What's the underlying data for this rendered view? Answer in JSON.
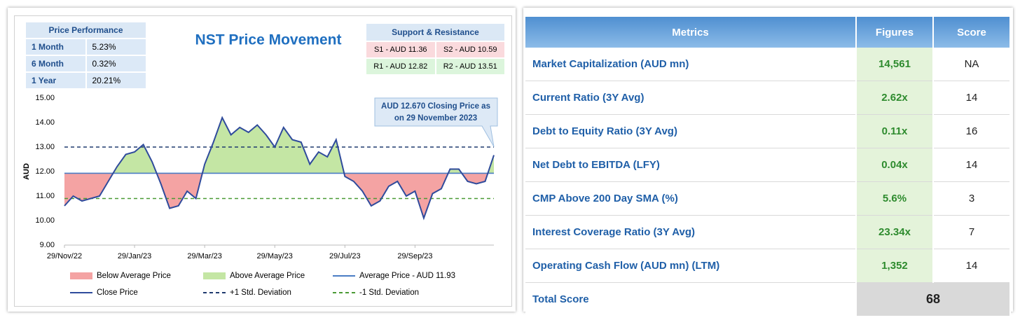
{
  "chart_data": {
    "type": "line",
    "title": "NST Price Movement",
    "ylabel": "AUD",
    "categories": [
      "29/Nov/22",
      null,
      null,
      null,
      null,
      null,
      null,
      null,
      "29/Jan/23",
      null,
      null,
      null,
      null,
      null,
      null,
      null,
      "29/Mar/23",
      null,
      null,
      null,
      null,
      null,
      null,
      null,
      "29/May/23",
      null,
      null,
      null,
      null,
      null,
      null,
      null,
      "29/Jul/23",
      null,
      null,
      null,
      null,
      null,
      null,
      null,
      "29/Sep/23",
      null,
      null,
      null,
      null,
      null,
      null,
      null,
      null,
      null
    ],
    "series": [
      {
        "name": "Close Price",
        "color": "#2f4b9c",
        "values": [
          10.6,
          11.0,
          10.8,
          10.9,
          11.0,
          11.6,
          12.2,
          12.7,
          12.8,
          13.1,
          12.4,
          11.5,
          10.5,
          10.6,
          11.2,
          10.9,
          12.3,
          13.2,
          14.2,
          13.5,
          13.8,
          13.6,
          13.9,
          13.5,
          13.0,
          13.8,
          13.3,
          13.2,
          12.3,
          12.8,
          12.6,
          13.3,
          11.8,
          11.6,
          11.2,
          10.6,
          10.8,
          11.4,
          11.6,
          11.0,
          11.2,
          10.1,
          11.1,
          11.3,
          12.1,
          12.1,
          11.6,
          11.5,
          11.6,
          12.67
        ]
      }
    ],
    "reference_lines": [
      {
        "name": "Average Price - AUD 11.93",
        "value": 11.93,
        "color": "#4a7cc4",
        "style": "solid"
      },
      {
        "name": "+1 Std. Deviation",
        "value": 13.0,
        "color": "#1f3a6e",
        "style": "dashed"
      },
      {
        "name": "-1 Std. Deviation",
        "value": 10.9,
        "color": "#4a9a35",
        "style": "dashed"
      }
    ],
    "areas": [
      {
        "name": "Below Average Price",
        "color": "#f4a3a3"
      },
      {
        "name": "Above Average Price",
        "color": "#c4e6a4"
      }
    ],
    "annotation": {
      "lines": [
        "AUD 12.670 Closing Price as",
        "on 29 November 2023"
      ]
    },
    "ylim": [
      9,
      15
    ],
    "yticks": [
      {
        "value": 9,
        "label": "9.00"
      },
      {
        "value": 10,
        "label": "10.00"
      },
      {
        "value": 11,
        "label": "11.00"
      },
      {
        "value": 12,
        "label": "12.00"
      },
      {
        "value": 13,
        "label": "13.00"
      },
      {
        "value": 14,
        "label": "14.00"
      },
      {
        "value": 15,
        "label": "15.00"
      }
    ],
    "grid": false
  },
  "price_performance": {
    "title": "Price Performance",
    "rows": [
      [
        "1 Month",
        "5.23%"
      ],
      [
        "6 Month",
        "0.32%"
      ],
      [
        "1 Year",
        "20.21%"
      ]
    ]
  },
  "support_resistance": {
    "title": "Support & Resistance",
    "rows": [
      [
        "S1 - AUD 11.36",
        "S2 - AUD 10.59"
      ],
      [
        "R1 - AUD 12.82",
        "R2 - AUD 13.51"
      ]
    ]
  },
  "metrics_table": {
    "header": [
      "Metrics",
      "Figures",
      "Score"
    ],
    "rows": [
      [
        "Market Capitalization (AUD mn)",
        "14,561",
        "NA"
      ],
      [
        "Current Ratio (3Y Avg)",
        "2.62x",
        "14"
      ],
      [
        "Debt to Equity Ratio (3Y Avg)",
        "0.11x",
        "16"
      ],
      [
        "Net Debt to EBITDA (LFY)",
        "0.04x",
        "14"
      ],
      [
        "CMP Above 200 Day SMA (%)",
        "5.6%",
        "3"
      ],
      [
        "Interest Coverage Ratio (3Y Avg)",
        "23.34x",
        "7"
      ],
      [
        "Operating Cash Flow (AUD mn) (LTM)",
        "1,352",
        "14"
      ]
    ],
    "total": [
      "Total Score",
      "68"
    ]
  }
}
